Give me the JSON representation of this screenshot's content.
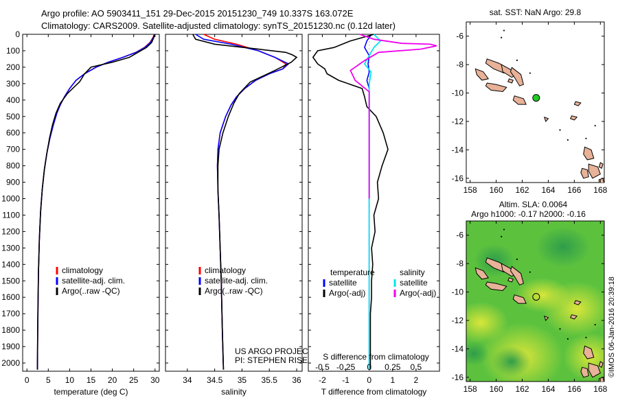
{
  "header": {
    "line1": "Argo profile: AO 5903411_151 29-Dec-2015 20151230_749 10.337S 163.072E",
    "line2": "Climatology: CARS2009. Satellite-adjusted climatology: synTS_20151230.nc (0.12d later)"
  },
  "colors": {
    "climatology": "#ff0000",
    "satellite": "#0000ff",
    "argo": "#000000",
    "salinity_satellite": "#00e5ee",
    "salinity_argo": "#ee00ee",
    "land": "#e8b298",
    "float_marker": "#22cc22"
  },
  "depth_axis": {
    "ylim": [
      0,
      2050
    ],
    "ticks": [
      0,
      100,
      200,
      300,
      400,
      500,
      600,
      700,
      800,
      900,
      1000,
      1100,
      1200,
      1300,
      1400,
      1500,
      1600,
      1700,
      1800,
      1900,
      2000
    ]
  },
  "chart_data": [
    {
      "type": "line",
      "id": "temperature",
      "xlabel": "temperature (deg C)",
      "xlim": [
        -1,
        31
      ],
      "xticks": [
        0,
        5,
        10,
        15,
        20,
        25,
        30
      ],
      "ylim": [
        2050,
        0
      ],
      "legend": [
        "climatology",
        "satellite-adj. clim.",
        "Argo(..raw -QC)"
      ],
      "legend_placement": "lower-center",
      "series": [
        {
          "name": "climatology",
          "color": "#ff0000",
          "x": [
            29.8,
            29.5,
            28.8,
            27.5,
            25.5,
            22.5,
            19,
            16.2,
            13.5,
            11.5,
            10,
            8.8,
            7.8,
            7,
            6.2,
            5.4,
            4.7,
            4.1,
            3.6,
            3.2,
            2.9,
            2.7,
            2.6,
            2.5,
            2.45
          ],
          "y": [
            0,
            20,
            50,
            80,
            110,
            140,
            170,
            200,
            240,
            280,
            330,
            380,
            430,
            480,
            550,
            630,
            720,
            820,
            940,
            1080,
            1250,
            1450,
            1650,
            1850,
            2040
          ]
        },
        {
          "name": "satellite-adj. clim.",
          "color": "#0000ff",
          "x": [
            29.9,
            29.6,
            28.9,
            27.6,
            25.6,
            22.5,
            19,
            16.2,
            13.5,
            11.5,
            10,
            8.8,
            7.8,
            7,
            6.2,
            5.4,
            4.7,
            4.1,
            3.6,
            3.2,
            2.9,
            2.7,
            2.6,
            2.5,
            2.45
          ],
          "y": [
            0,
            20,
            50,
            80,
            110,
            140,
            170,
            200,
            240,
            280,
            330,
            380,
            430,
            480,
            550,
            630,
            720,
            820,
            940,
            1080,
            1250,
            1450,
            1650,
            1850,
            2040
          ]
        },
        {
          "name": "Argo(..raw -QC)",
          "color": "#000000",
          "x": [
            30,
            29.7,
            29.2,
            28,
            26,
            24,
            20,
            15,
            13.5,
            12.8,
            12.3,
            11.5,
            9.5,
            7.8,
            6.8,
            6,
            5.3,
            4.7,
            4.1,
            3.6,
            3.2,
            2.9,
            2.7,
            2.55,
            2.45
          ],
          "y": [
            0,
            20,
            50,
            80,
            110,
            140,
            170,
            200,
            240,
            270,
            290,
            310,
            360,
            420,
            480,
            550,
            630,
            720,
            820,
            940,
            1080,
            1250,
            1450,
            1700,
            2040
          ]
        }
      ]
    },
    {
      "type": "line",
      "id": "salinity",
      "xlabel": "salinity",
      "xlim": [
        33.6,
        36.1
      ],
      "xticks": [
        34,
        34.5,
        35,
        35.5,
        36
      ],
      "ylim": [
        2050,
        0
      ],
      "legend": [
        "climatology",
        "satellite-adj. clim.",
        "Argo(..raw -QC)"
      ],
      "legend_placement": "lower-center",
      "annotation": [
        "US ARGO PROJECT",
        "PI: STEPHEN RISER"
      ],
      "series": [
        {
          "name": "climatology",
          "color": "#ff0000",
          "x": [
            34.3,
            34.5,
            34.9,
            35.3,
            35.6,
            35.8,
            35.75,
            35.5,
            35.25,
            35.05,
            34.9,
            34.8,
            34.7,
            34.6,
            34.56,
            34.55,
            34.56,
            34.58,
            34.6,
            34.62,
            34.64,
            34.66
          ],
          "y": [
            0,
            30,
            60,
            100,
            140,
            180,
            210,
            240,
            280,
            330,
            380,
            430,
            500,
            600,
            700,
            800,
            950,
            1100,
            1300,
            1500,
            1800,
            2040
          ]
        },
        {
          "name": "satellite-adj. clim.",
          "color": "#0000ff",
          "x": [
            34.15,
            34.3,
            34.8,
            35.3,
            35.6,
            35.85,
            35.75,
            35.5,
            35.25,
            35.05,
            34.9,
            34.8,
            34.7,
            34.6,
            34.56,
            34.55,
            34.56,
            34.58,
            34.6,
            34.62,
            34.64,
            34.66
          ],
          "y": [
            0,
            30,
            60,
            100,
            140,
            180,
            210,
            240,
            280,
            330,
            380,
            430,
            500,
            600,
            700,
            800,
            950,
            1100,
            1300,
            1500,
            1800,
            2040
          ]
        },
        {
          "name": "Argo(..raw -QC)",
          "color": "#000000",
          "x": [
            34.1,
            34.15,
            34.5,
            35.3,
            35.8,
            35.92,
            36,
            35.9,
            35.6,
            35.15,
            34.95,
            34.85,
            34.75,
            34.65,
            34.58,
            34.56,
            34.56,
            34.58,
            34.6,
            34.62,
            34.64,
            34.66
          ],
          "y": [
            0,
            30,
            60,
            90,
            110,
            125,
            140,
            170,
            220,
            290,
            360,
            420,
            500,
            600,
            700,
            800,
            950,
            1100,
            1300,
            1500,
            1800,
            2040
          ]
        }
      ]
    },
    {
      "type": "line",
      "id": "difference",
      "xlabel": "T difference from climatology",
      "xlabel_top": "S difference from climatology",
      "xlim": [
        -2.6,
        3.0
      ],
      "xticks": [
        -2,
        -1,
        0,
        1,
        2
      ],
      "s_xticks_labels": [
        "-0.5",
        "-0.25",
        "0",
        "0.25",
        "0.5"
      ],
      "s_xticks_values": [
        -0.5,
        -0.25,
        0,
        0.25,
        0.5
      ],
      "s_scale": 4,
      "ylim": [
        2050,
        0
      ],
      "legend_temperature_title": "temperature",
      "legend_salinity_title": "salinity",
      "legend": [
        "satellite",
        "Argo(-adj)"
      ],
      "legend_placement": "lower-center",
      "series": [
        {
          "name": "satellite",
          "kind": "T",
          "color": "#0000ff",
          "x": [
            0.1,
            -0.1,
            -0.2,
            0,
            -0.05,
            0,
            -0.1,
            0,
            0,
            0,
            0,
            0,
            0,
            0,
            0,
            0,
            0,
            0,
            0
          ],
          "y": [
            0,
            40,
            80,
            130,
            180,
            230,
            280,
            330,
            400,
            500,
            600,
            700,
            800,
            1000,
            1200,
            1400,
            1600,
            1800,
            2040
          ]
        },
        {
          "name": "Argo(-adj)",
          "kind": "T",
          "color": "#000000",
          "x": [
            0.2,
            -0.8,
            -1.5,
            -2.2,
            -2.4,
            -2.2,
            -1.9,
            -1.8,
            -1.3,
            -0.3,
            -0.2,
            -0.1,
            0.3,
            0.6,
            0.8,
            0.55,
            0.35,
            0.4,
            0.2,
            0.25,
            0.1,
            0.15,
            0.1,
            0.1,
            0.05,
            0.05,
            0.05
          ],
          "y": [
            0,
            40,
            80,
            100,
            140,
            180,
            210,
            240,
            280,
            330,
            380,
            440,
            500,
            600,
            700,
            800,
            900,
            1000,
            1100,
            1200,
            1300,
            1400,
            1500,
            1600,
            1700,
            1800,
            2040
          ]
        },
        {
          "name": "satellite",
          "kind": "S",
          "color": "#00e5ee",
          "x": [
            0.05,
            0.12,
            0.05,
            0,
            -0.05,
            0.02,
            0,
            0,
            0,
            0,
            0,
            0,
            0,
            0,
            0,
            0
          ],
          "y": [
            0,
            40,
            80,
            130,
            180,
            230,
            300,
            400,
            600,
            800,
            1000,
            1200,
            1400,
            1600,
            1800,
            2040
          ]
        },
        {
          "name": "Argo(-adj)",
          "kind": "S",
          "color": "#ee00ee",
          "x": [
            -0.1,
            0.05,
            0.35,
            0.65,
            0.72,
            0.55,
            0.1,
            -0.05,
            -0.2,
            -0.15,
            0,
            0,
            0,
            0
          ],
          "y": [
            0,
            30,
            55,
            60,
            70,
            90,
            110,
            160,
            220,
            280,
            350,
            450,
            700,
            1000
          ]
        }
      ]
    },
    {
      "type": "map",
      "id": "sst_map",
      "title": "sat. SST: NaN Argo: 29.8",
      "xlim": [
        157.7,
        168.3
      ],
      "ylim": [
        -16.3,
        -5
      ],
      "xticks": [
        158,
        160,
        162,
        164,
        166,
        168
      ],
      "yticks": [
        -6,
        -8,
        -10,
        -12,
        -14,
        -16
      ],
      "argo_position": {
        "lon": 163.07,
        "lat": -10.34
      }
    },
    {
      "type": "heatmap",
      "id": "sla_map",
      "title_line1": "Altim. SLA: 0.0064",
      "title_line2": "Argo h1000: -0.17 h2000: -0.16",
      "xlim": [
        157.7,
        168.3
      ],
      "ylim": [
        -16.3,
        -5
      ],
      "xticks": [
        158,
        160,
        162,
        164,
        166,
        168
      ],
      "yticks": [
        -6,
        -8,
        -10,
        -12,
        -14,
        -16
      ],
      "argo_position": {
        "lon": 163.07,
        "lat": -10.34
      }
    }
  ],
  "footer": {
    "credit": "©IMOS 06-Jan-2016 20:39:18"
  }
}
